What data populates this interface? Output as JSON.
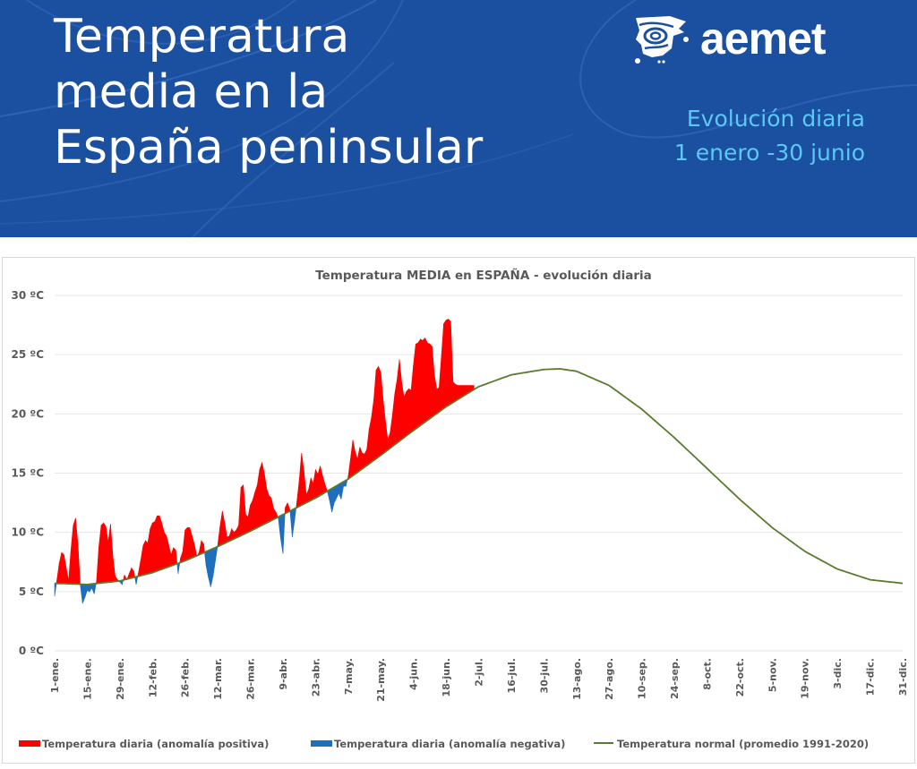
{
  "banner": {
    "title_lines": [
      "Temperatura",
      "media en la",
      "España peninsular"
    ],
    "logo_text": "aemet",
    "logo_icon": "aemet-iberia-map-icon",
    "subtitle_lines": [
      "Evolución diaria",
      "1 enero -30 junio"
    ],
    "colors": {
      "background": "#1b4fa0",
      "title": "#ffffff",
      "subtitle": "#5bc8f5"
    }
  },
  "chart_data": {
    "type": "area",
    "title": "Temperatura MEDIA en ESPAÑA - evolución diaria",
    "xlabel": "",
    "ylabel": "",
    "ylim": [
      0,
      30
    ],
    "yticks": [
      0,
      5,
      10,
      15,
      20,
      25,
      30
    ],
    "ytick_labels": [
      "0 ºC",
      "5 ºC",
      "10 ºC",
      "15 ºC",
      "20 ºC",
      "25 ºC",
      "30 ºC"
    ],
    "xlim_days": [
      1,
      365
    ],
    "xtick_days": [
      1,
      15,
      29,
      43,
      57,
      71,
      85,
      99,
      113,
      127,
      141,
      155,
      169,
      183,
      197,
      211,
      225,
      239,
      253,
      267,
      281,
      295,
      309,
      323,
      337,
      351,
      365
    ],
    "xtick_labels": [
      "1-ene.",
      "15-ene.",
      "29-ene.",
      "12-feb.",
      "26-feb.",
      "12-mar.",
      "26-mar.",
      "9-abr.",
      "23-abr.",
      "7-may.",
      "21-may.",
      "4-jun.",
      "18-jun.",
      "2-jul.",
      "16-jul.",
      "30-jul.",
      "13-ago.",
      "27-ago.",
      "10-sep.",
      "24-sep.",
      "8-oct.",
      "22-oct.",
      "5-nov.",
      "19-nov.",
      "3-dic.",
      "17-dic.",
      "31-dic."
    ],
    "grid": true,
    "legend_position": "bottom",
    "colors": {
      "positive": "#ff0000",
      "negative": "#1f6fbf",
      "normal": "#5a7a2e",
      "grid": "#e6e6e6"
    },
    "series": [
      {
        "name": "Temperatura diaria (anomalía positiva)",
        "kind": "area-above-normal"
      },
      {
        "name": "Temperatura diaria (anomalía negativa)",
        "kind": "area-below-normal"
      },
      {
        "name": "Temperatura normal (promedio 1991-2020)",
        "kind": "line",
        "day": [
          1,
          15,
          29,
          43,
          57,
          71,
          85,
          99,
          113,
          127,
          141,
          155,
          169,
          183,
          197,
          211,
          218,
          225,
          239,
          253,
          267,
          281,
          295,
          309,
          323,
          337,
          351,
          365
        ],
        "values": [
          5.7,
          5.6,
          5.9,
          6.6,
          7.6,
          8.8,
          10.1,
          11.5,
          12.9,
          14.5,
          16.5,
          18.6,
          20.6,
          22.3,
          23.3,
          23.75,
          23.8,
          23.6,
          22.4,
          20.4,
          18.0,
          15.4,
          12.8,
          10.4,
          8.4,
          6.9,
          6.0,
          5.7
        ]
      },
      {
        "name": "Temperatura diaria",
        "kind": "daily-observed",
        "day": [
          1,
          2,
          3,
          4,
          5,
          6,
          7,
          8,
          9,
          10,
          11,
          12,
          13,
          14,
          15,
          16,
          17,
          18,
          19,
          20,
          21,
          22,
          23,
          24,
          25,
          26,
          27,
          28,
          29,
          30,
          31,
          32,
          33,
          34,
          35,
          36,
          37,
          38,
          39,
          40,
          41,
          42,
          43,
          44,
          45,
          46,
          47,
          48,
          49,
          50,
          51,
          52,
          53,
          54,
          55,
          56,
          57,
          58,
          59,
          60,
          61,
          62,
          63,
          64,
          65,
          66,
          67,
          68,
          69,
          70,
          71,
          72,
          73,
          74,
          75,
          76,
          77,
          78,
          79,
          80,
          81,
          82,
          83,
          84,
          85,
          86,
          87,
          88,
          89,
          90,
          91,
          92,
          93,
          94,
          95,
          96,
          97,
          98,
          99,
          100,
          101,
          102,
          103,
          104,
          105,
          106,
          107,
          108,
          109,
          110,
          111,
          112,
          113,
          114,
          115,
          116,
          117,
          118,
          119,
          120,
          121,
          122,
          123,
          124,
          125,
          126,
          127,
          128,
          129,
          130,
          131,
          132,
          133,
          134,
          135,
          136,
          137,
          138,
          139,
          140,
          141,
          142,
          143,
          144,
          145,
          146,
          147,
          148,
          149,
          150,
          151,
          152,
          153,
          154,
          155,
          156,
          157,
          158,
          159,
          160,
          161,
          162,
          163,
          164,
          165,
          166,
          167,
          168,
          169,
          170,
          171,
          172,
          173,
          174,
          175,
          176,
          177,
          178,
          179,
          180,
          181
        ],
        "values": [
          4.6,
          6.0,
          7.4,
          8.3,
          8.1,
          7.0,
          5.9,
          8.5,
          10.6,
          11.2,
          9.0,
          5.6,
          4.0,
          4.5,
          5.1,
          5.0,
          5.3,
          4.8,
          5.9,
          8.8,
          10.6,
          10.8,
          10.5,
          9.2,
          10.7,
          8.0,
          6.3,
          6.0,
          5.8,
          5.6,
          6.4,
          6.0,
          6.5,
          7.0,
          6.7,
          5.6,
          6.6,
          7.7,
          8.9,
          9.3,
          9.1,
          10.3,
          10.8,
          10.9,
          11.4,
          11.4,
          10.8,
          10.0,
          9.7,
          8.9,
          8.1,
          8.7,
          8.5,
          6.5,
          7.8,
          8.4,
          10.2,
          10.4,
          10.4,
          9.7,
          9.0,
          8.0,
          8.3,
          9.3,
          9.0,
          7.2,
          6.2,
          5.4,
          6.3,
          7.6,
          8.9,
          10.5,
          11.8,
          10.8,
          9.6,
          9.7,
          10.3,
          10.0,
          10.2,
          10.6,
          13.8,
          14.0,
          11.5,
          11.3,
          12.3,
          12.7,
          13.4,
          14.0,
          15.3,
          15.9,
          15.0,
          13.7,
          13.1,
          12.9,
          12.0,
          11.7,
          11.2,
          9.5,
          8.2,
          12.1,
          12.5,
          11.9,
          9.6,
          11.0,
          12.6,
          14.4,
          16.7,
          15.2,
          13.2,
          13.6,
          14.6,
          14.1,
          15.3,
          14.9,
          15.6,
          14.8,
          14.1,
          13.5,
          12.7,
          11.7,
          12.5,
          12.9,
          13.3,
          12.8,
          13.9,
          13.9,
          14.7,
          16.2,
          17.8,
          16.8,
          16.2,
          17.2,
          16.7,
          16.6,
          17.0,
          18.7,
          19.7,
          21.2,
          23.7,
          24.0,
          23.5,
          21.2,
          19.4,
          17.8,
          18.4,
          19.9,
          21.7,
          22.9,
          24.6,
          22.6,
          21.4,
          21.9,
          22.1,
          22.0,
          24.1,
          25.9,
          26.0,
          26.3,
          26.2,
          26.4,
          26.0,
          25.9,
          25.7,
          23.3,
          22.1,
          22.2,
          24.8,
          27.6,
          27.9,
          28.0,
          27.8,
          22.7,
          22.5,
          22.4,
          22.4,
          22.4,
          22.4,
          22.4,
          22.4,
          22.4,
          22.4
        ]
      }
    ]
  },
  "legend": {
    "items": [
      {
        "label": "Temperatura diaria (anomalía positiva)",
        "color": "#ff0000",
        "kind": "box"
      },
      {
        "label": "Temperatura diaria (anomalía negativa)",
        "color": "#1f6fbf",
        "kind": "box"
      },
      {
        "label": "Temperatura normal (promedio 1991-2020)",
        "color": "#5a7a2e",
        "kind": "line"
      }
    ]
  }
}
